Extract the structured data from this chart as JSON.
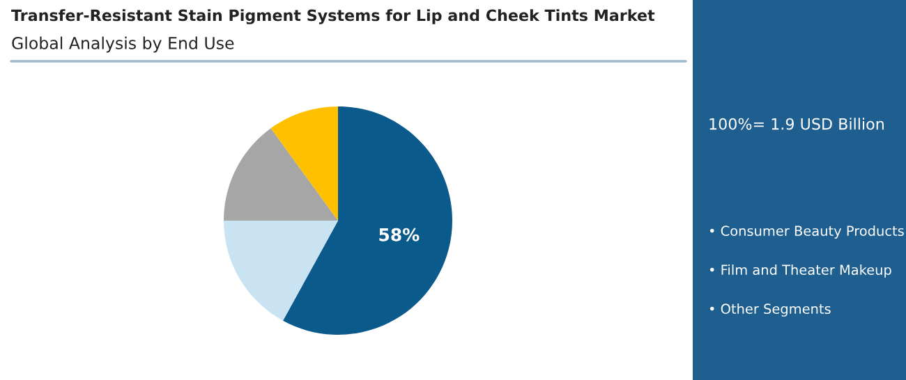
{
  "chart_data": {
    "type": "pie",
    "title": "Transfer-Resistant Stain Pigment Systems for Lip and Cheek Tints Market",
    "subtitle": "Global Analysis by End Use",
    "categories": [
      null,
      null,
      null,
      null
    ],
    "values": [
      58,
      17,
      15,
      10
    ],
    "value_labels": [
      "58%",
      null,
      null,
      null
    ],
    "colors": [
      "#0b5a8c",
      "#c9e3f3",
      "#a6a6a6",
      "#ffc000"
    ],
    "annotations": [
      "100%= 1.9 USD Billion",
      "• Consumer Beauty Products",
      "• Film and Theater Makeup",
      "• Other Segments"
    ],
    "legend": false
  }
}
